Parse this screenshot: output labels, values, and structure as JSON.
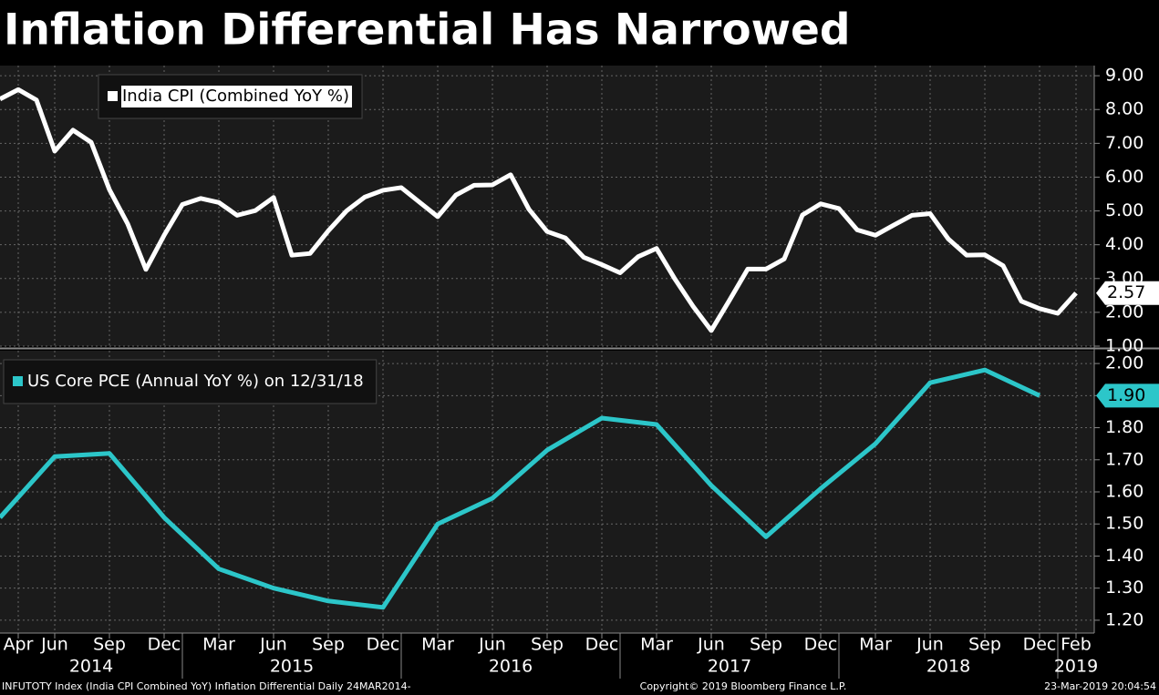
{
  "title": "Inflation Differential Has Narrowed",
  "x_axis": {
    "xlim": [
      "2014-03",
      "2019-03"
    ],
    "ticks": [
      {
        "value": "2014-04",
        "label": "Apr"
      },
      {
        "value": "2014-06",
        "label": "Jun"
      },
      {
        "value": "2014-09",
        "label": "Sep"
      },
      {
        "value": "2014-12",
        "label": "Dec"
      },
      {
        "value": "2015-03",
        "label": "Mar"
      },
      {
        "value": "2015-06",
        "label": "Jun"
      },
      {
        "value": "2015-09",
        "label": "Sep"
      },
      {
        "value": "2015-12",
        "label": "Dec"
      },
      {
        "value": "2016-03",
        "label": "Mar"
      },
      {
        "value": "2016-06",
        "label": "Jun"
      },
      {
        "value": "2016-09",
        "label": "Sep"
      },
      {
        "value": "2016-12",
        "label": "Dec"
      },
      {
        "value": "2017-03",
        "label": "Mar"
      },
      {
        "value": "2017-06",
        "label": "Jun"
      },
      {
        "value": "2017-09",
        "label": "Sep"
      },
      {
        "value": "2017-12",
        "label": "Dec"
      },
      {
        "value": "2018-03",
        "label": "Mar"
      },
      {
        "value": "2018-06",
        "label": "Jun"
      },
      {
        "value": "2018-09",
        "label": "Sep"
      },
      {
        "value": "2018-12",
        "label": "Dec"
      },
      {
        "value": "2019-02",
        "label": "Feb"
      }
    ],
    "years": [
      2014,
      2015,
      2016,
      2017,
      2018,
      2019
    ]
  },
  "chart_data": [
    {
      "type": "line",
      "grid": true,
      "ylim": [
        1,
        9.3
      ],
      "yticks": [
        {
          "value": 1,
          "label": "1.00"
        },
        {
          "value": 2,
          "label": "2.00"
        },
        {
          "value": 3,
          "label": "3.00"
        },
        {
          "value": 4,
          "label": "4.00"
        },
        {
          "value": 5,
          "label": "5.00"
        },
        {
          "value": 6,
          "label": "6.00"
        },
        {
          "value": 7,
          "label": "7.00"
        },
        {
          "value": 8,
          "label": "8.00"
        },
        {
          "value": 9,
          "label": "9.00"
        }
      ],
      "x": [
        "2014-03",
        "2014-04",
        "2014-05",
        "2014-06",
        "2014-07",
        "2014-08",
        "2014-09",
        "2014-10",
        "2014-11",
        "2014-12",
        "2015-01",
        "2015-02",
        "2015-03",
        "2015-04",
        "2015-05",
        "2015-06",
        "2015-07",
        "2015-08",
        "2015-09",
        "2015-10",
        "2015-11",
        "2015-12",
        "2016-01",
        "2016-02",
        "2016-03",
        "2016-04",
        "2016-05",
        "2016-06",
        "2016-07",
        "2016-08",
        "2016-09",
        "2016-10",
        "2016-11",
        "2016-12",
        "2017-01",
        "2017-02",
        "2017-03",
        "2017-04",
        "2017-05",
        "2017-06",
        "2017-07",
        "2017-08",
        "2017-09",
        "2017-10",
        "2017-11",
        "2017-12",
        "2018-01",
        "2018-02",
        "2018-03",
        "2018-04",
        "2018-05",
        "2018-06",
        "2018-07",
        "2018-08",
        "2018-09",
        "2018-10",
        "2018-11",
        "2018-12",
        "2019-01",
        "2019-02"
      ],
      "series": [
        {
          "name": "India CPI (Combined YoY %)",
          "color": "#ffffff",
          "values": [
            8.31,
            8.59,
            8.28,
            6.77,
            7.39,
            7.03,
            5.63,
            4.62,
            3.27,
            4.28,
            5.19,
            5.37,
            5.25,
            4.87,
            5.01,
            5.4,
            3.69,
            3.74,
            4.41,
            5.0,
            5.41,
            5.61,
            5.69,
            5.26,
            4.83,
            5.47,
            5.76,
            5.77,
            6.07,
            5.05,
            4.39,
            4.2,
            3.63,
            3.41,
            3.17,
            3.65,
            3.89,
            2.99,
            2.18,
            1.46,
            2.36,
            3.28,
            3.28,
            3.58,
            4.88,
            5.21,
            5.07,
            4.44,
            4.28,
            4.58,
            4.87,
            4.92,
            4.17,
            3.69,
            3.7,
            3.38,
            2.33,
            2.11,
            1.97,
            2.57
          ],
          "value_labels": [
            null,
            null,
            null,
            null,
            null,
            null,
            null,
            null,
            null,
            null,
            null,
            null,
            null,
            null,
            null,
            null,
            null,
            null,
            null,
            null,
            null,
            null,
            null,
            null,
            null,
            null,
            null,
            null,
            null,
            null,
            null,
            null,
            null,
            null,
            null,
            null,
            null,
            null,
            null,
            null,
            null,
            null,
            null,
            null,
            null,
            null,
            null,
            null,
            null,
            null,
            null,
            null,
            null,
            null,
            null,
            null,
            null,
            null,
            null,
            "2.57"
          ]
        }
      ]
    },
    {
      "type": "line",
      "grid": true,
      "ylim": [
        1.16,
        2.04
      ],
      "yticks": [
        {
          "value": 1.2,
          "label": "1.20"
        },
        {
          "value": 1.3,
          "label": "1.30"
        },
        {
          "value": 1.4,
          "label": "1.40"
        },
        {
          "value": 1.5,
          "label": "1.50"
        },
        {
          "value": 1.6,
          "label": "1.60"
        },
        {
          "value": 1.7,
          "label": "1.70"
        },
        {
          "value": 1.8,
          "label": "1.80"
        },
        {
          "value": 1.9,
          "label": "1.90"
        },
        {
          "value": 2.0,
          "label": "2.00"
        }
      ],
      "x": [
        "2014-03",
        "2014-06",
        "2014-09",
        "2014-12",
        "2015-03",
        "2015-06",
        "2015-09",
        "2015-12",
        "2016-03",
        "2016-06",
        "2016-09",
        "2016-12",
        "2017-03",
        "2017-06",
        "2017-09",
        "2017-12",
        "2018-03",
        "2018-06",
        "2018-09",
        "2018-12"
      ],
      "series": [
        {
          "name": "US Core PCE (Annual YoY %) on 12/31/18",
          "color": "#2cc6c9",
          "values": [
            1.52,
            1.71,
            1.72,
            1.52,
            1.36,
            1.3,
            1.26,
            1.24,
            1.5,
            1.58,
            1.73,
            1.83,
            1.81,
            1.62,
            1.46,
            1.61,
            1.75,
            1.94,
            1.98,
            1.9
          ],
          "value_labels": [
            null,
            null,
            null,
            null,
            null,
            null,
            null,
            null,
            null,
            null,
            null,
            null,
            null,
            null,
            null,
            null,
            null,
            null,
            null,
            "1.90"
          ]
        }
      ]
    }
  ],
  "footer": {
    "left": "INFUTOTY Index (India CPI Combined YoY) Inflation Differential  Daily 24MAR2014-",
    "center": "Copyright© 2019 Bloomberg Finance L.P.",
    "right": "23-Mar-2019 20:04:54"
  }
}
